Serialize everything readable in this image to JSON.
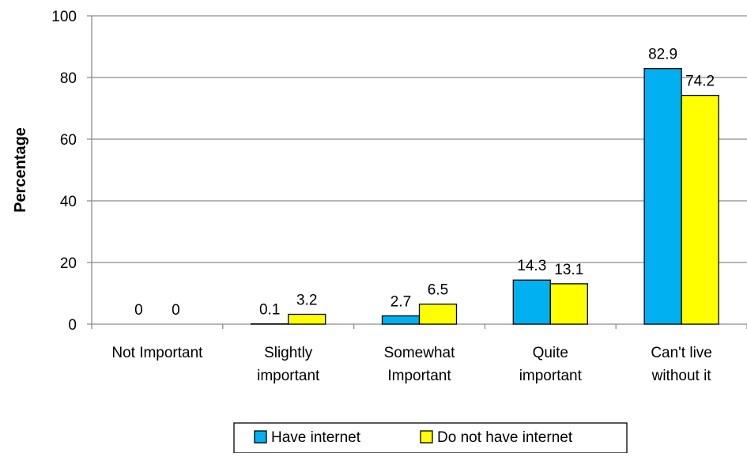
{
  "chart_data": {
    "type": "bar",
    "title": "",
    "xlabel": "",
    "ylabel": "Percentage",
    "ylim": [
      0,
      100
    ],
    "yticks": [
      "0",
      "20",
      "40",
      "60",
      "80",
      "100"
    ],
    "grid": true,
    "legend_position": "bottom",
    "categories": [
      [
        "Not Important"
      ],
      [
        "Slightly",
        "important"
      ],
      [
        "Somewhat",
        "Important"
      ],
      [
        "Quite",
        "important"
      ],
      [
        "Can't live",
        "without it"
      ]
    ],
    "series": [
      {
        "name": "Have internet",
        "color": "#00B0F0",
        "values": [
          0,
          0.1,
          2.7,
          14.3,
          82.9
        ],
        "labels": [
          "0",
          "0.1",
          "2.7",
          "14.3",
          "82.9"
        ]
      },
      {
        "name": "Do not have internet",
        "color": "#FFFF00",
        "values": [
          0,
          3.2,
          6.5,
          13.1,
          74.2
        ],
        "labels": [
          "0",
          "3.2",
          "6.5",
          "13.1",
          "74.2"
        ]
      }
    ]
  }
}
